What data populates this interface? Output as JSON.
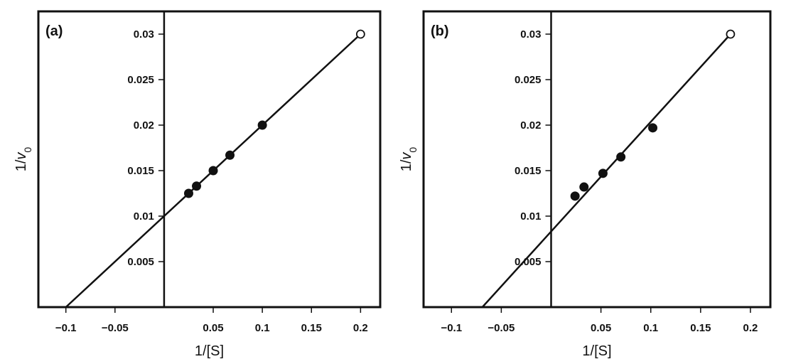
{
  "chart_data": [
    {
      "type": "scatter",
      "panel_label": "(a)",
      "xlabel": "1/[S]",
      "ylabel_main": "1/v",
      "ylabel_sub": "0",
      "xlim": [
        -0.128,
        0.22
      ],
      "ylim": [
        0,
        0.0325
      ],
      "x_ticks": [
        -0.1,
        -0.05,
        0.05,
        0.1,
        0.15,
        0.2
      ],
      "x_tick_labels": [
        "−0.1",
        "−0.05",
        "0.05",
        "0.1",
        "0.15",
        "0.2"
      ],
      "y_ticks": [
        0.005,
        0.01,
        0.015,
        0.02,
        0.025,
        0.03
      ],
      "y_tick_labels": [
        "0.005",
        "0.01",
        "0.015",
        "0.02",
        "0.025",
        "0.03"
      ],
      "grid": false,
      "series": [
        {
          "marker": "filled-circle",
          "points": [
            [
              0.025,
              0.0125
            ],
            [
              0.033,
              0.0133
            ],
            [
              0.05,
              0.015
            ],
            [
              0.067,
              0.0167
            ],
            [
              0.1,
              0.02
            ]
          ]
        },
        {
          "marker": "open-circle",
          "points": [
            [
              0.2,
              0.03
            ]
          ]
        }
      ],
      "fit_line": {
        "x": [
          -0.1,
          0.2
        ],
        "y": [
          0.0,
          0.03
        ]
      }
    },
    {
      "type": "scatter",
      "panel_label": "(b)",
      "xlabel": "1/[S]",
      "ylabel_main": "1/v",
      "ylabel_sub": "0",
      "xlim": [
        -0.128,
        0.22
      ],
      "ylim": [
        0,
        0.0325
      ],
      "x_ticks": [
        -0.1,
        -0.05,
        0.05,
        0.1,
        0.15,
        0.2
      ],
      "x_tick_labels": [
        "−0.1",
        "−0.05",
        "0.05",
        "0.1",
        "0.15",
        "0.2"
      ],
      "y_ticks": [
        0.005,
        0.01,
        0.015,
        0.02,
        0.025,
        0.03
      ],
      "y_tick_labels": [
        "0.005",
        "0.01",
        "0.015",
        "0.02",
        "0.025",
        "0.03"
      ],
      "grid": false,
      "series": [
        {
          "marker": "filled-circle",
          "points": [
            [
              0.024,
              0.0122
            ],
            [
              0.033,
              0.0132
            ],
            [
              0.052,
              0.0147
            ],
            [
              0.07,
              0.0165
            ],
            [
              0.102,
              0.0197
            ]
          ]
        },
        {
          "marker": "open-circle",
          "points": [
            [
              0.18,
              0.03
            ]
          ]
        }
      ],
      "fit_line": {
        "x": [
          -0.069,
          0.18
        ],
        "y": [
          0.0,
          0.03
        ]
      }
    }
  ]
}
